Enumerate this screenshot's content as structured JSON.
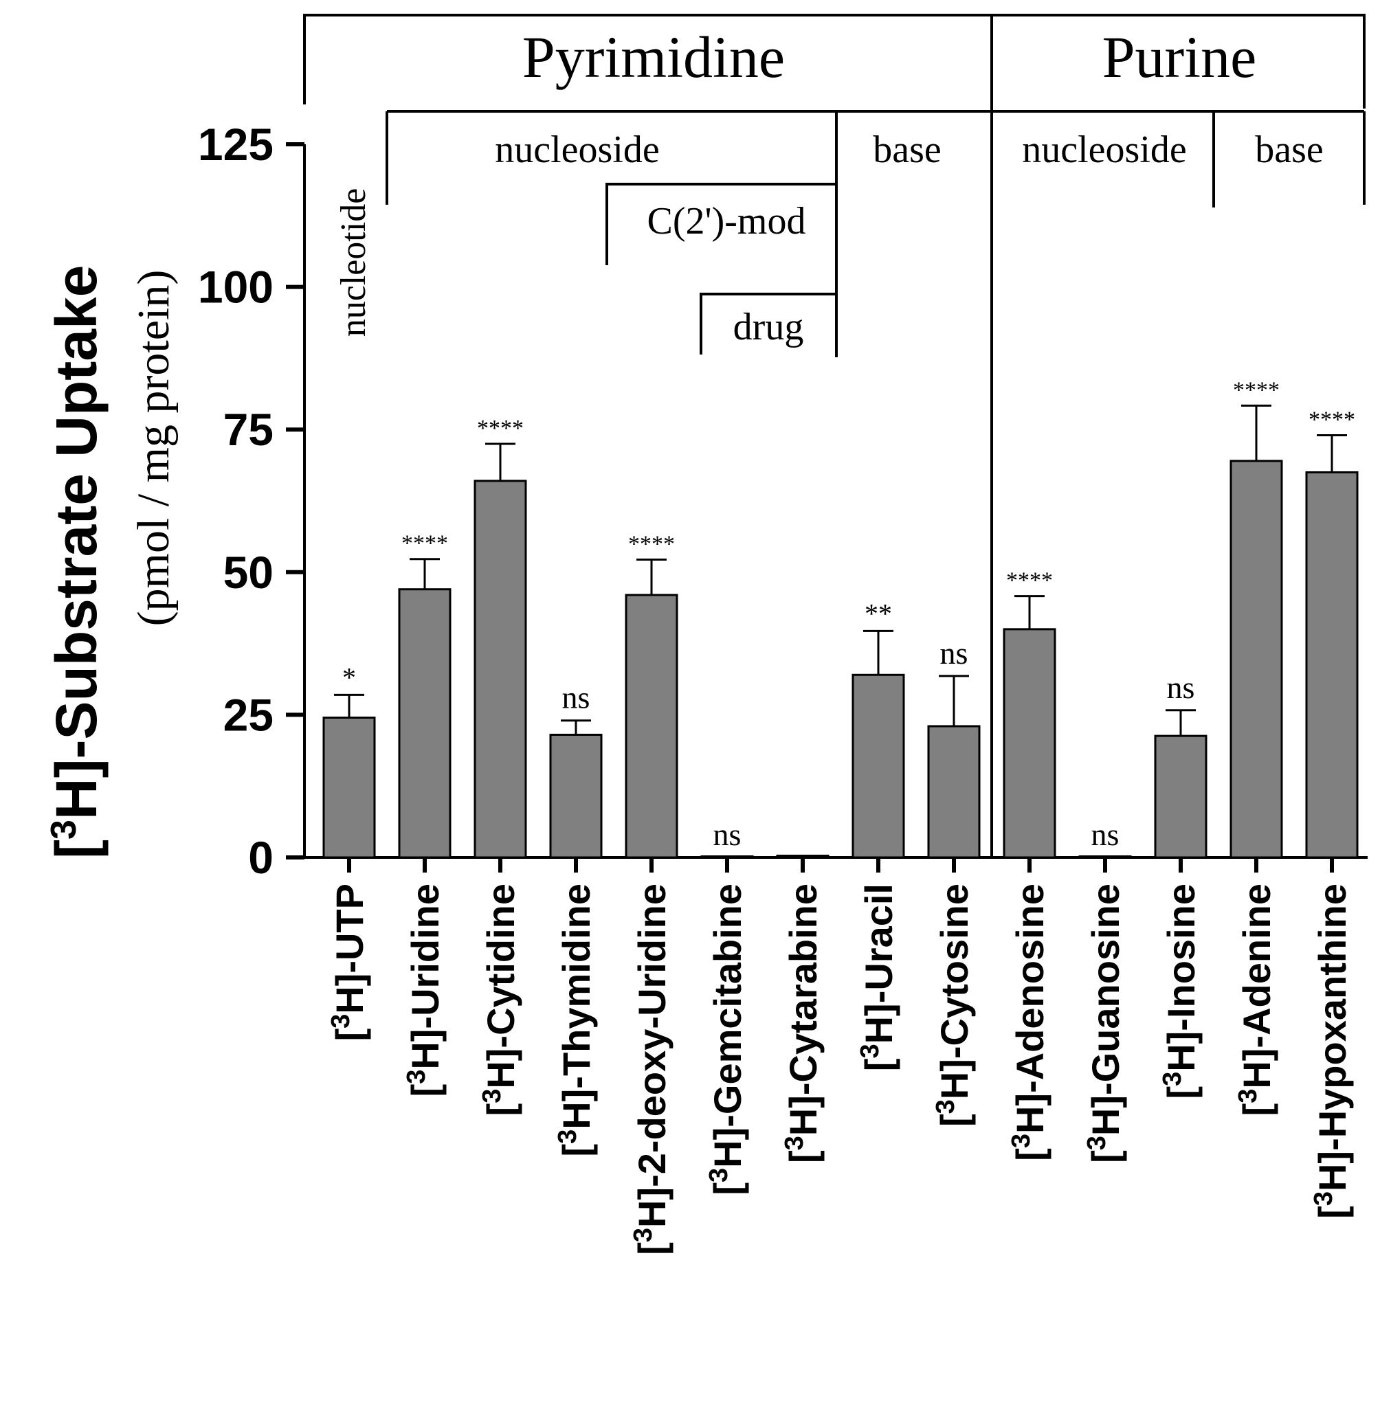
{
  "chart_data": {
    "type": "bar",
    "ylabel_main": "-Substrate  Uptake",
    "ylabel_main_prefix": "[",
    "ylabel_main_sup": "3",
    "ylabel_main_element": "H]",
    "ylabel_units": "(pmol / mg protein)",
    "ylim": [
      0,
      125
    ],
    "yticks": [
      0,
      25,
      50,
      75,
      100,
      125
    ],
    "categories": [
      "-UTP",
      "-Uridine",
      "-Cytidine",
      "-Thymidine",
      "-2-deoxy-Uridine",
      "-Gemcitabine",
      "-Cytarabine",
      "-Uracil",
      "-Cytosine",
      "-Adenosine",
      "-Guanosine",
      "-Inosine",
      "-Adenine",
      "-Hypoxanthine"
    ],
    "label_prefix": "[",
    "label_sup": "3",
    "label_element": "H]",
    "values": [
      24.5,
      47,
      66,
      21.5,
      46,
      0,
      0.3,
      32,
      23,
      40,
      0,
      21.3,
      69.5,
      67.5
    ],
    "errors": [
      4,
      5.3,
      6.5,
      2.5,
      6.2,
      0,
      0,
      7.7,
      8.8,
      5.8,
      0,
      4.5,
      9.7,
      6.5
    ],
    "significance": [
      "*",
      "****",
      "****",
      "ns",
      "****",
      "ns",
      "",
      "**",
      "ns",
      "****",
      "ns",
      "ns",
      "****",
      "****"
    ],
    "groups": {
      "pyrimidine": "Pyrimidine",
      "purine": "Purine",
      "nucleotide": "nucleotide",
      "pyr_nucleoside": "nucleoside",
      "pyr_base": "base",
      "c2mod": "C(2')-mod",
      "drug": "drug",
      "pur_nucleoside": "nucleoside",
      "pur_base": "base"
    }
  }
}
